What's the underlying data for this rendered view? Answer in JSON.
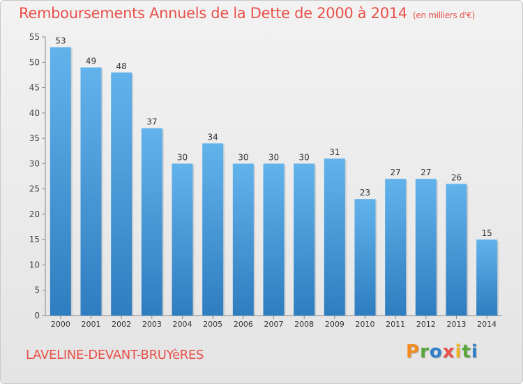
{
  "header": {
    "title": "Remboursements Annuels de la Dette de 2000 à 2014",
    "unit": "(en milliers d'€)"
  },
  "footer": {
    "city": "LAVELINE-DEVANT-BRUYèRES",
    "logo_letters": [
      "P",
      "r",
      "o",
      "x",
      "i",
      "t",
      "i"
    ],
    "logo_colors": [
      "#f28c1e",
      "#5aa63c",
      "#2f7fc8",
      "#e8504a",
      "#f2b41e",
      "#5aa63c",
      "#2f7fc8"
    ]
  },
  "colors": {
    "accent": "#e8504a",
    "bar_top": "#62b3ec",
    "bar_bottom": "#2e7dc0"
  },
  "chart_data": {
    "type": "bar",
    "title": "Remboursements Annuels de la Dette de 2000 à 2014",
    "xlabel": "",
    "ylabel": "",
    "categories": [
      "2000",
      "2001",
      "2002",
      "2003",
      "2004",
      "2005",
      "2006",
      "2007",
      "2008",
      "2009",
      "2010",
      "2011",
      "2012",
      "2013",
      "2014"
    ],
    "values": [
      53,
      49,
      48,
      37,
      30,
      34,
      30,
      30,
      30,
      31,
      23,
      27,
      27,
      26,
      15
    ],
    "ylim": [
      0,
      55
    ],
    "yticks": [
      0,
      5,
      10,
      15,
      20,
      25,
      30,
      35,
      40,
      45,
      50,
      55
    ],
    "grid": false,
    "data_labels": true
  }
}
